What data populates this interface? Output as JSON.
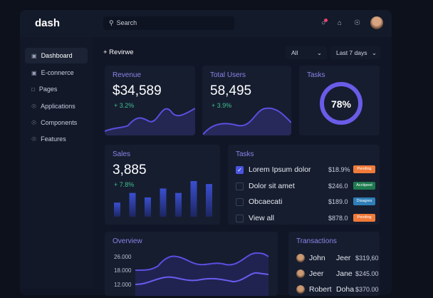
{
  "app": {
    "logo": "dash"
  },
  "header": {
    "search_placeholder": "Search",
    "icons": [
      "notification-icon",
      "home-icon",
      "info-icon",
      "avatar"
    ],
    "notification_color": "#e9436f"
  },
  "sidebar": {
    "items": [
      {
        "label": "Dashboard",
        "icon": "dashboard-icon",
        "active": true
      },
      {
        "label": "E-connerce",
        "icon": "ecommerce-icon"
      },
      {
        "label": "Pages",
        "icon": "pages-icon"
      },
      {
        "label": "Applications",
        "icon": "applications-icon"
      },
      {
        "label": "Components",
        "icon": "components-icon"
      },
      {
        "label": "Features",
        "icon": "features-icon"
      }
    ]
  },
  "toolbar": {
    "add_label": "+ Revirwe",
    "filter_all": "All",
    "filter_range": "Last 7 days"
  },
  "revenue": {
    "title": "Revenue",
    "value": "$34,589",
    "delta": "+ 3.2%"
  },
  "users": {
    "title": "Total Users",
    "value": "58,495",
    "delta": "+ 3.9%"
  },
  "tasks_ring": {
    "title": "Tasks",
    "value": "78%",
    "percent": 78,
    "color": "#6a5ce8"
  },
  "sales": {
    "title": "Sales",
    "value": "3,885",
    "delta": "+ 7.8%",
    "bars": [
      19,
      32,
      26,
      38,
      32,
      48,
      44
    ]
  },
  "tasks": {
    "title": "Tasks",
    "items": [
      {
        "label": "Lorem Ipsum dolor",
        "amount": "$18.9%",
        "status": "Pending",
        "status_color": "#f07b3a",
        "checked": true
      },
      {
        "label": "Dolor sit amet",
        "amount": "$246.0",
        "status": "Acctipeet",
        "status_color": "#1f7a4f",
        "checked": false
      },
      {
        "label": "Obcaecati",
        "amount": "$189.0",
        "status": "Disagres",
        "status_color": "#2f7fb8",
        "checked": false
      },
      {
        "label": "View all",
        "amount": "$878.0",
        "status": "Pending",
        "status_color": "#f07b3a",
        "checked": false
      }
    ]
  },
  "overview": {
    "title": "Overview",
    "y_ticks": [
      "26.000",
      "18.000",
      "12.000"
    ]
  },
  "transactions": {
    "title": "Transactions",
    "items": [
      {
        "first": "John",
        "second": "Jeer",
        "amount": "$319,60"
      },
      {
        "first": "Jeer",
        "second": "Jane",
        "amount": "$245.00"
      },
      {
        "first": "Robert",
        "second": "Doha",
        "amount": "$370.00"
      }
    ]
  },
  "colors": {
    "accent": "#6a5ce8",
    "positive": "#3fbf8e",
    "background": "#0d111c"
  }
}
